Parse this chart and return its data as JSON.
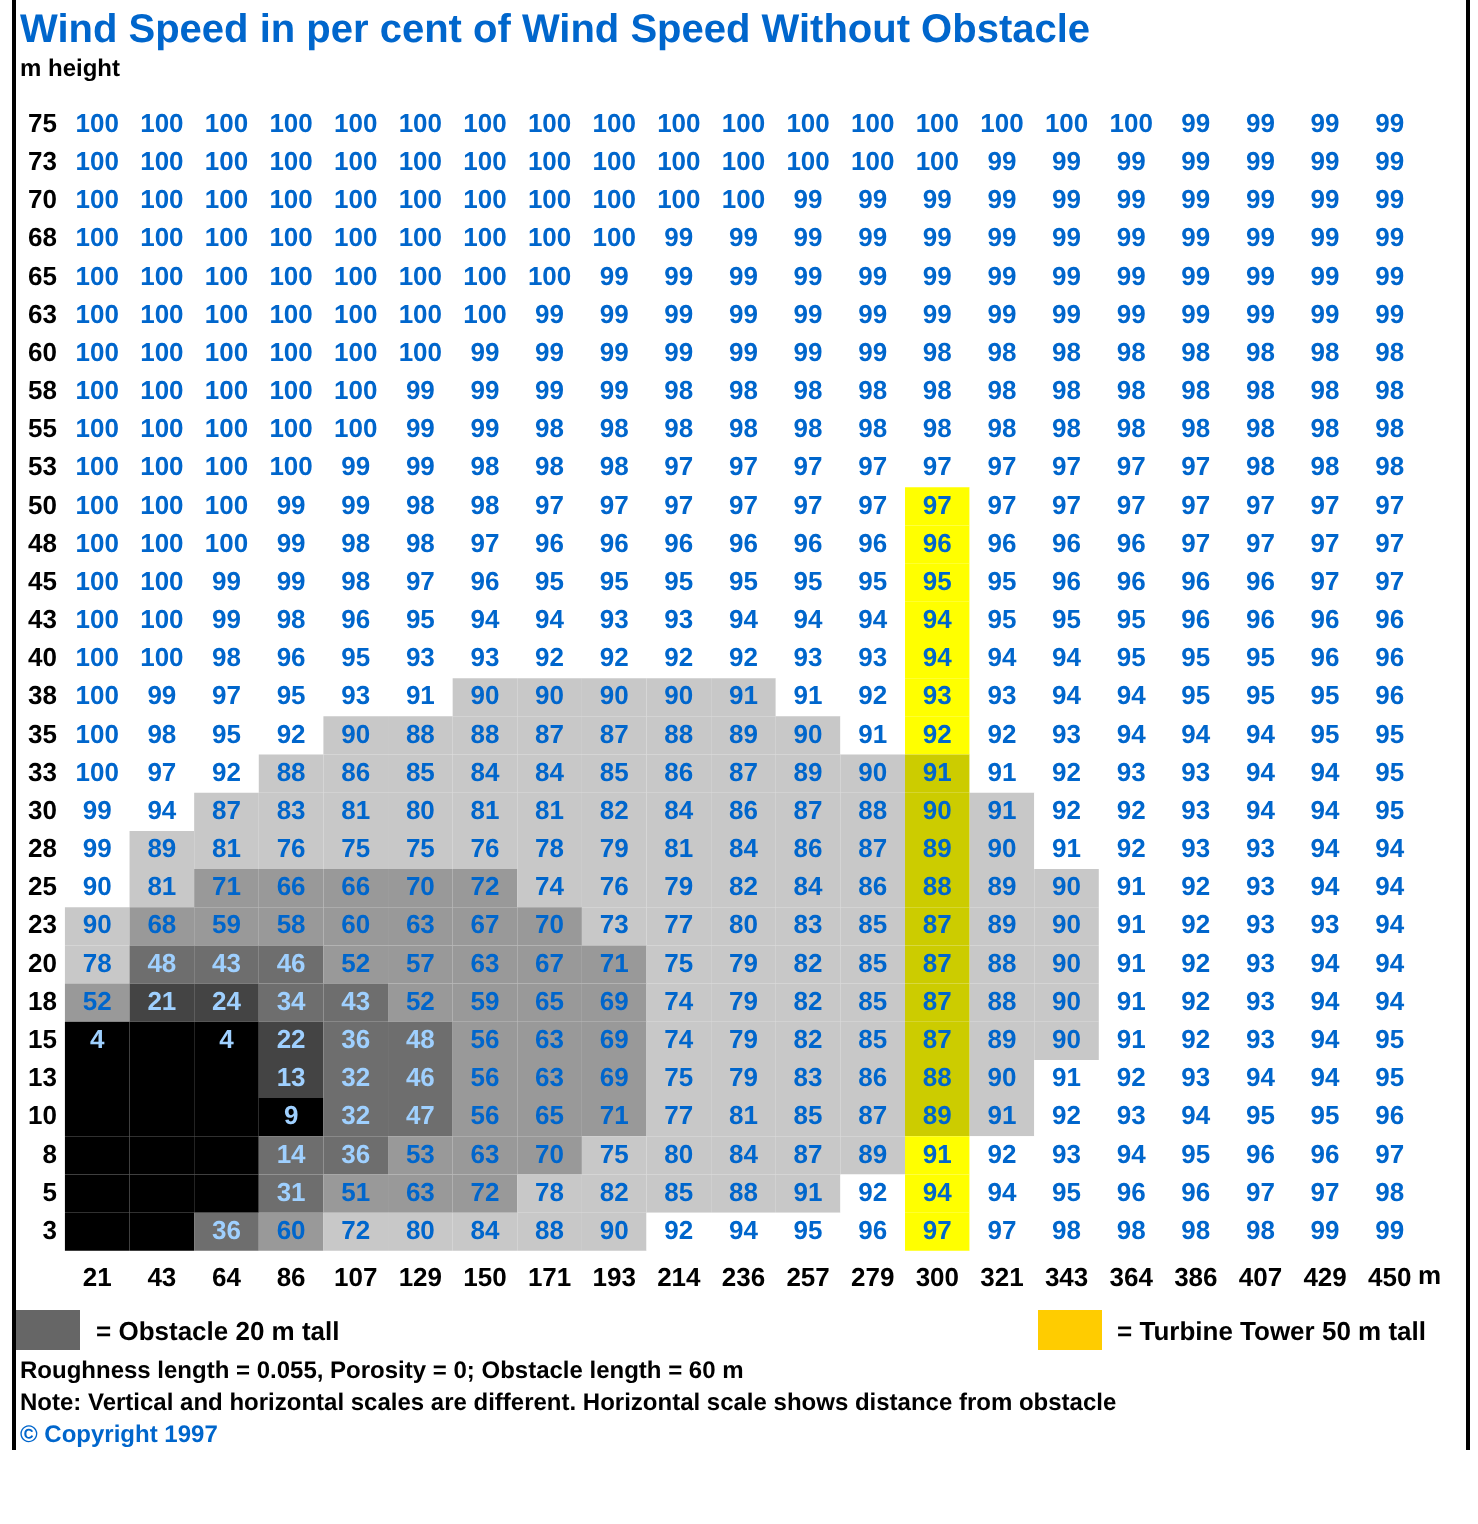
{
  "chart_data": {
    "type": "heatmap",
    "title": "Wind Speed in per cent of Wind Speed Without Obstacle",
    "ylabel": "m height",
    "xlabel": "m",
    "categories": [
      "21",
      "43",
      "64",
      "86",
      "107",
      "129",
      "150",
      "171",
      "193",
      "214",
      "236",
      "257",
      "279",
      "300",
      "321",
      "343",
      "364",
      "386",
      "407",
      "429",
      "450"
    ],
    "y_categories": [
      "75",
      "73",
      "70",
      "68",
      "65",
      "63",
      "60",
      "58",
      "55",
      "53",
      "50",
      "48",
      "45",
      "43",
      "40",
      "38",
      "35",
      "33",
      "30",
      "28",
      "25",
      "23",
      "20",
      "18",
      "15",
      "13",
      "10",
      "8",
      "5",
      "3"
    ],
    "cells": [
      [
        100,
        100,
        100,
        100,
        100,
        100,
        100,
        100,
        100,
        100,
        100,
        100,
        100,
        100,
        100,
        100,
        100,
        99,
        99,
        99,
        99
      ],
      [
        100,
        100,
        100,
        100,
        100,
        100,
        100,
        100,
        100,
        100,
        100,
        100,
        100,
        100,
        99,
        99,
        99,
        99,
        99,
        99,
        99
      ],
      [
        100,
        100,
        100,
        100,
        100,
        100,
        100,
        100,
        100,
        100,
        100,
        99,
        99,
        99,
        99,
        99,
        99,
        99,
        99,
        99,
        99
      ],
      [
        100,
        100,
        100,
        100,
        100,
        100,
        100,
        100,
        100,
        99,
        99,
        99,
        99,
        99,
        99,
        99,
        99,
        99,
        99,
        99,
        99
      ],
      [
        100,
        100,
        100,
        100,
        100,
        100,
        100,
        100,
        99,
        99,
        99,
        99,
        99,
        99,
        99,
        99,
        99,
        99,
        99,
        99,
        99
      ],
      [
        100,
        100,
        100,
        100,
        100,
        100,
        100,
        99,
        99,
        99,
        99,
        99,
        99,
        99,
        99,
        99,
        99,
        99,
        99,
        99,
        99
      ],
      [
        100,
        100,
        100,
        100,
        100,
        100,
        99,
        99,
        99,
        99,
        99,
        99,
        99,
        98,
        98,
        98,
        98,
        98,
        98,
        98,
        98
      ],
      [
        100,
        100,
        100,
        100,
        100,
        99,
        99,
        99,
        99,
        98,
        98,
        98,
        98,
        98,
        98,
        98,
        98,
        98,
        98,
        98,
        98
      ],
      [
        100,
        100,
        100,
        100,
        100,
        99,
        99,
        98,
        98,
        98,
        98,
        98,
        98,
        98,
        98,
        98,
        98,
        98,
        98,
        98,
        98
      ],
      [
        100,
        100,
        100,
        100,
        99,
        99,
        98,
        98,
        98,
        97,
        97,
        97,
        97,
        97,
        97,
        97,
        97,
        97,
        98,
        98,
        98
      ],
      [
        100,
        100,
        100,
        99,
        99,
        98,
        98,
        97,
        97,
        97,
        97,
        97,
        97,
        97,
        97,
        97,
        97,
        97,
        97,
        97,
        97
      ],
      [
        100,
        100,
        100,
        99,
        98,
        98,
        97,
        96,
        96,
        96,
        96,
        96,
        96,
        96,
        96,
        96,
        96,
        97,
        97,
        97,
        97
      ],
      [
        100,
        100,
        99,
        99,
        98,
        97,
        96,
        95,
        95,
        95,
        95,
        95,
        95,
        95,
        95,
        96,
        96,
        96,
        96,
        97,
        97
      ],
      [
        100,
        100,
        99,
        98,
        96,
        95,
        94,
        94,
        93,
        93,
        94,
        94,
        94,
        94,
        95,
        95,
        95,
        96,
        96,
        96,
        96
      ],
      [
        100,
        100,
        98,
        96,
        95,
        93,
        93,
        92,
        92,
        92,
        92,
        93,
        93,
        94,
        94,
        94,
        95,
        95,
        95,
        96,
        96
      ],
      [
        100,
        99,
        97,
        95,
        93,
        91,
        90,
        90,
        90,
        90,
        91,
        91,
        92,
        93,
        93,
        94,
        94,
        95,
        95,
        95,
        96
      ],
      [
        100,
        98,
        95,
        92,
        90,
        88,
        88,
        87,
        87,
        88,
        89,
        90,
        91,
        92,
        92,
        93,
        94,
        94,
        94,
        95,
        95
      ],
      [
        100,
        97,
        92,
        88,
        86,
        85,
        84,
        84,
        85,
        86,
        87,
        89,
        90,
        91,
        91,
        92,
        93,
        93,
        94,
        94,
        95
      ],
      [
        99,
        94,
        87,
        83,
        81,
        80,
        81,
        81,
        82,
        84,
        86,
        87,
        88,
        90,
        91,
        92,
        92,
        93,
        94,
        94,
        95
      ],
      [
        99,
        89,
        81,
        76,
        75,
        75,
        76,
        78,
        79,
        81,
        84,
        86,
        87,
        89,
        90,
        91,
        92,
        93,
        93,
        94,
        94
      ],
      [
        90,
        81,
        71,
        66,
        66,
        70,
        72,
        74,
        76,
        79,
        82,
        84,
        86,
        88,
        89,
        90,
        91,
        92,
        93,
        94,
        94
      ],
      [
        90,
        68,
        59,
        58,
        60,
        63,
        67,
        70,
        73,
        77,
        80,
        83,
        85,
        87,
        89,
        90,
        91,
        92,
        93,
        93,
        94
      ],
      [
        78,
        48,
        43,
        46,
        52,
        57,
        63,
        67,
        71,
        75,
        79,
        82,
        85,
        87,
        88,
        90,
        91,
        92,
        93,
        94,
        94
      ],
      [
        52,
        21,
        24,
        34,
        43,
        52,
        59,
        65,
        69,
        74,
        79,
        82,
        85,
        87,
        88,
        90,
        91,
        92,
        93,
        94,
        94
      ],
      [
        4,
        null,
        4,
        22,
        36,
        48,
        56,
        63,
        69,
        74,
        79,
        82,
        85,
        87,
        89,
        90,
        91,
        92,
        93,
        94,
        95
      ],
      [
        null,
        null,
        null,
        13,
        32,
        46,
        56,
        63,
        69,
        75,
        79,
        83,
        86,
        88,
        90,
        91,
        92,
        93,
        94,
        94,
        95
      ],
      [
        null,
        null,
        null,
        9,
        32,
        47,
        56,
        65,
        71,
        77,
        81,
        85,
        87,
        89,
        91,
        92,
        93,
        94,
        95,
        95,
        96
      ],
      [
        null,
        null,
        null,
        14,
        36,
        53,
        63,
        70,
        75,
        80,
        84,
        87,
        89,
        91,
        92,
        93,
        94,
        95,
        96,
        96,
        97
      ],
      [
        null,
        null,
        null,
        31,
        51,
        63,
        72,
        78,
        82,
        85,
        88,
        91,
        92,
        94,
        94,
        95,
        96,
        96,
        97,
        97,
        98
      ],
      [
        null,
        null,
        36,
        60,
        72,
        80,
        84,
        88,
        90,
        92,
        94,
        95,
        96,
        97,
        97,
        98,
        98,
        98,
        98,
        99,
        99
      ]
    ],
    "colors": [
      [
        "#ffffff",
        "#ffffff",
        "#ffffff",
        "#ffffff",
        "#ffffff",
        "#ffffff",
        "#ffffff",
        "#ffffff",
        "#ffffff",
        "#ffffff",
        "#ffffff",
        "#ffffff",
        "#ffffff",
        "#ffffff",
        "#ffffff",
        "#ffffff",
        "#ffffff",
        "#ffffff",
        "#ffffff",
        "#ffffff",
        "#ffffff"
      ],
      [
        "#ffffff",
        "#ffffff",
        "#ffffff",
        "#ffffff",
        "#ffffff",
        "#ffffff",
        "#ffffff",
        "#ffffff",
        "#ffffff",
        "#ffffff",
        "#ffffff",
        "#ffffff",
        "#ffffff",
        "#ffffff",
        "#ffffff",
        "#ffffff",
        "#ffffff",
        "#ffffff",
        "#ffffff",
        "#ffffff",
        "#ffffff"
      ],
      [
        "#ffffff",
        "#ffffff",
        "#ffffff",
        "#ffffff",
        "#ffffff",
        "#ffffff",
        "#ffffff",
        "#ffffff",
        "#ffffff",
        "#ffffff",
        "#ffffff",
        "#ffffff",
        "#ffffff",
        "#ffffff",
        "#ffffff",
        "#ffffff",
        "#ffffff",
        "#ffffff",
        "#ffffff",
        "#ffffff",
        "#ffffff"
      ],
      [
        "#ffffff",
        "#ffffff",
        "#ffffff",
        "#ffffff",
        "#ffffff",
        "#ffffff",
        "#ffffff",
        "#ffffff",
        "#ffffff",
        "#ffffff",
        "#ffffff",
        "#ffffff",
        "#ffffff",
        "#ffffff",
        "#ffffff",
        "#ffffff",
        "#ffffff",
        "#ffffff",
        "#ffffff",
        "#ffffff",
        "#ffffff"
      ],
      [
        "#ffffff",
        "#ffffff",
        "#ffffff",
        "#ffffff",
        "#ffffff",
        "#ffffff",
        "#ffffff",
        "#ffffff",
        "#ffffff",
        "#ffffff",
        "#ffffff",
        "#ffffff",
        "#ffffff",
        "#ffffff",
        "#ffffff",
        "#ffffff",
        "#ffffff",
        "#ffffff",
        "#ffffff",
        "#ffffff",
        "#ffffff"
      ],
      [
        "#ffffff",
        "#ffffff",
        "#ffffff",
        "#ffffff",
        "#ffffff",
        "#ffffff",
        "#ffffff",
        "#ffffff",
        "#ffffff",
        "#ffffff",
        "#ffffff",
        "#ffffff",
        "#ffffff",
        "#ffffff",
        "#ffffff",
        "#ffffff",
        "#ffffff",
        "#ffffff",
        "#ffffff",
        "#ffffff",
        "#ffffff"
      ],
      [
        "#ffffff",
        "#ffffff",
        "#ffffff",
        "#ffffff",
        "#ffffff",
        "#ffffff",
        "#ffffff",
        "#ffffff",
        "#ffffff",
        "#ffffff",
        "#ffffff",
        "#ffffff",
        "#ffffff",
        "#ffffff",
        "#ffffff",
        "#ffffff",
        "#ffffff",
        "#ffffff",
        "#ffffff",
        "#ffffff",
        "#ffffff"
      ],
      [
        "#ffffff",
        "#ffffff",
        "#ffffff",
        "#ffffff",
        "#ffffff",
        "#ffffff",
        "#ffffff",
        "#ffffff",
        "#ffffff",
        "#ffffff",
        "#ffffff",
        "#ffffff",
        "#ffffff",
        "#ffffff",
        "#ffffff",
        "#ffffff",
        "#ffffff",
        "#ffffff",
        "#ffffff",
        "#ffffff",
        "#ffffff"
      ],
      [
        "#ffffff",
        "#ffffff",
        "#ffffff",
        "#ffffff",
        "#ffffff",
        "#ffffff",
        "#ffffff",
        "#ffffff",
        "#ffffff",
        "#ffffff",
        "#ffffff",
        "#ffffff",
        "#ffffff",
        "#ffffff",
        "#ffffff",
        "#ffffff",
        "#ffffff",
        "#ffffff",
        "#ffffff",
        "#ffffff",
        "#ffffff"
      ],
      [
        "#ffffff",
        "#ffffff",
        "#ffffff",
        "#ffffff",
        "#ffffff",
        "#ffffff",
        "#ffffff",
        "#ffffff",
        "#ffffff",
        "#ffffff",
        "#ffffff",
        "#ffffff",
        "#ffffff",
        "#ffffff",
        "#ffffff",
        "#ffffff",
        "#ffffff",
        "#ffffff",
        "#ffffff",
        "#ffffff",
        "#ffffff"
      ],
      [
        "#ffffff",
        "#ffffff",
        "#ffffff",
        "#ffffff",
        "#ffffff",
        "#ffffff",
        "#ffffff",
        "#ffffff",
        "#ffffff",
        "#ffffff",
        "#ffffff",
        "#ffffff",
        "#ffffff",
        "#ffff00",
        "#ffffff",
        "#ffffff",
        "#ffffff",
        "#ffffff",
        "#ffffff",
        "#ffffff",
        "#ffffff"
      ],
      [
        "#ffffff",
        "#ffffff",
        "#ffffff",
        "#ffffff",
        "#ffffff",
        "#ffffff",
        "#ffffff",
        "#ffffff",
        "#ffffff",
        "#ffffff",
        "#ffffff",
        "#ffffff",
        "#ffffff",
        "#ffff00",
        "#ffffff",
        "#ffffff",
        "#ffffff",
        "#ffffff",
        "#ffffff",
        "#ffffff",
        "#ffffff"
      ],
      [
        "#ffffff",
        "#ffffff",
        "#ffffff",
        "#ffffff",
        "#ffffff",
        "#ffffff",
        "#ffffff",
        "#ffffff",
        "#ffffff",
        "#ffffff",
        "#ffffff",
        "#ffffff",
        "#ffffff",
        "#ffff00",
        "#ffffff",
        "#ffffff",
        "#ffffff",
        "#ffffff",
        "#ffffff",
        "#ffffff",
        "#ffffff"
      ],
      [
        "#ffffff",
        "#ffffff",
        "#ffffff",
        "#ffffff",
        "#ffffff",
        "#ffffff",
        "#ffffff",
        "#ffffff",
        "#ffffff",
        "#ffffff",
        "#ffffff",
        "#ffffff",
        "#ffffff",
        "#ffff00",
        "#ffffff",
        "#ffffff",
        "#ffffff",
        "#ffffff",
        "#ffffff",
        "#ffffff",
        "#ffffff"
      ],
      [
        "#ffffff",
        "#ffffff",
        "#ffffff",
        "#ffffff",
        "#ffffff",
        "#ffffff",
        "#ffffff",
        "#ffffff",
        "#ffffff",
        "#ffffff",
        "#ffffff",
        "#ffffff",
        "#ffffff",
        "#ffff00",
        "#ffffff",
        "#ffffff",
        "#ffffff",
        "#ffffff",
        "#ffffff",
        "#ffffff",
        "#ffffff"
      ],
      [
        "#ffffff",
        "#ffffff",
        "#ffffff",
        "#ffffff",
        "#ffffff",
        "#ffffff",
        "#c8c8c8",
        "#c8c8c8",
        "#c8c8c8",
        "#c8c8c8",
        "#c8c8c8",
        "#ffffff",
        "#ffffff",
        "#ffff00",
        "#ffffff",
        "#ffffff",
        "#ffffff",
        "#ffffff",
        "#ffffff",
        "#ffffff",
        "#ffffff"
      ],
      [
        "#ffffff",
        "#ffffff",
        "#ffffff",
        "#ffffff",
        "#c8c8c8",
        "#c8c8c8",
        "#c8c8c8",
        "#c8c8c8",
        "#c8c8c8",
        "#c8c8c8",
        "#c8c8c8",
        "#c8c8c8",
        "#ffffff",
        "#ffff00",
        "#ffffff",
        "#ffffff",
        "#ffffff",
        "#ffffff",
        "#ffffff",
        "#ffffff",
        "#ffffff"
      ],
      [
        "#ffffff",
        "#ffffff",
        "#ffffff",
        "#c8c8c8",
        "#c8c8c8",
        "#c8c8c8",
        "#c8c8c8",
        "#c8c8c8",
        "#c8c8c8",
        "#c8c8c8",
        "#c8c8c8",
        "#c8c8c8",
        "#c8c8c8",
        "#cccc00",
        "#ffffff",
        "#ffffff",
        "#ffffff",
        "#ffffff",
        "#ffffff",
        "#ffffff",
        "#ffffff"
      ],
      [
        "#ffffff",
        "#ffffff",
        "#c8c8c8",
        "#c8c8c8",
        "#c8c8c8",
        "#c8c8c8",
        "#c8c8c8",
        "#c8c8c8",
        "#c8c8c8",
        "#c8c8c8",
        "#c8c8c8",
        "#c8c8c8",
        "#c8c8c8",
        "#cccc00",
        "#c8c8c8",
        "#ffffff",
        "#ffffff",
        "#ffffff",
        "#ffffff",
        "#ffffff",
        "#ffffff"
      ],
      [
        "#ffffff",
        "#c8c8c8",
        "#c8c8c8",
        "#c8c8c8",
        "#c8c8c8",
        "#c8c8c8",
        "#c8c8c8",
        "#c8c8c8",
        "#c8c8c8",
        "#c8c8c8",
        "#c8c8c8",
        "#c8c8c8",
        "#c8c8c8",
        "#cccc00",
        "#c8c8c8",
        "#ffffff",
        "#ffffff",
        "#ffffff",
        "#ffffff",
        "#ffffff",
        "#ffffff"
      ],
      [
        "#ffffff",
        "#c8c8c8",
        "#999999",
        "#999999",
        "#999999",
        "#999999",
        "#999999",
        "#c8c8c8",
        "#c8c8c8",
        "#c8c8c8",
        "#c8c8c8",
        "#c8c8c8",
        "#c8c8c8",
        "#cccc00",
        "#c8c8c8",
        "#c8c8c8",
        "#ffffff",
        "#ffffff",
        "#ffffff",
        "#ffffff",
        "#ffffff"
      ],
      [
        "#c8c8c8",
        "#999999",
        "#999999",
        "#999999",
        "#999999",
        "#999999",
        "#999999",
        "#999999",
        "#c8c8c8",
        "#c8c8c8",
        "#c8c8c8",
        "#c8c8c8",
        "#c8c8c8",
        "#cccc00",
        "#c8c8c8",
        "#c8c8c8",
        "#ffffff",
        "#ffffff",
        "#ffffff",
        "#ffffff",
        "#ffffff"
      ],
      [
        "#c8c8c8",
        "#6e6e6e",
        "#6e6e6e",
        "#6e6e6e",
        "#999999",
        "#999999",
        "#999999",
        "#999999",
        "#999999",
        "#c8c8c8",
        "#c8c8c8",
        "#c8c8c8",
        "#c8c8c8",
        "#cccc00",
        "#c8c8c8",
        "#c8c8c8",
        "#ffffff",
        "#ffffff",
        "#ffffff",
        "#ffffff",
        "#ffffff"
      ],
      [
        "#999999",
        "#444444",
        "#444444",
        "#6e6e6e",
        "#6e6e6e",
        "#999999",
        "#999999",
        "#999999",
        "#999999",
        "#c8c8c8",
        "#c8c8c8",
        "#c8c8c8",
        "#c8c8c8",
        "#cccc00",
        "#c8c8c8",
        "#c8c8c8",
        "#ffffff",
        "#ffffff",
        "#ffffff",
        "#ffffff",
        "#ffffff"
      ],
      [
        "#000000",
        "#000000",
        "#000000",
        "#444444",
        "#6e6e6e",
        "#6e6e6e",
        "#999999",
        "#999999",
        "#999999",
        "#c8c8c8",
        "#c8c8c8",
        "#c8c8c8",
        "#c8c8c8",
        "#cccc00",
        "#c8c8c8",
        "#c8c8c8",
        "#ffffff",
        "#ffffff",
        "#ffffff",
        "#ffffff",
        "#ffffff"
      ],
      [
        "#000000",
        "#000000",
        "#000000",
        "#444444",
        "#6e6e6e",
        "#6e6e6e",
        "#999999",
        "#999999",
        "#999999",
        "#c8c8c8",
        "#c8c8c8",
        "#c8c8c8",
        "#c8c8c8",
        "#cccc00",
        "#c8c8c8",
        "#ffffff",
        "#ffffff",
        "#ffffff",
        "#ffffff",
        "#ffffff",
        "#ffffff"
      ],
      [
        "#000000",
        "#000000",
        "#000000",
        "#000000",
        "#6e6e6e",
        "#6e6e6e",
        "#999999",
        "#999999",
        "#999999",
        "#c8c8c8",
        "#c8c8c8",
        "#c8c8c8",
        "#c8c8c8",
        "#cccc00",
        "#c8c8c8",
        "#ffffff",
        "#ffffff",
        "#ffffff",
        "#ffffff",
        "#ffffff",
        "#ffffff"
      ],
      [
        "#000000",
        "#000000",
        "#000000",
        "#6e6e6e",
        "#6e6e6e",
        "#999999",
        "#999999",
        "#999999",
        "#c8c8c8",
        "#c8c8c8",
        "#c8c8c8",
        "#c8c8c8",
        "#c8c8c8",
        "#ffff00",
        "#ffffff",
        "#ffffff",
        "#ffffff",
        "#ffffff",
        "#ffffff",
        "#ffffff",
        "#ffffff"
      ],
      [
        "#000000",
        "#000000",
        "#000000",
        "#6e6e6e",
        "#999999",
        "#999999",
        "#999999",
        "#c8c8c8",
        "#c8c8c8",
        "#c8c8c8",
        "#c8c8c8",
        "#c8c8c8",
        "#ffffff",
        "#ffff00",
        "#ffffff",
        "#ffffff",
        "#ffffff",
        "#ffffff",
        "#ffffff",
        "#ffffff",
        "#ffffff"
      ],
      [
        "#000000",
        "#000000",
        "#6e6e6e",
        "#999999",
        "#c8c8c8",
        "#c8c8c8",
        "#c8c8c8",
        "#c8c8c8",
        "#c8c8c8",
        "#ffffff",
        "#ffffff",
        "#ffffff",
        "#ffffff",
        "#ffff00",
        "#ffffff",
        "#ffffff",
        "#ffffff",
        "#ffffff",
        "#ffffff",
        "#ffffff",
        "#ffffff"
      ]
    ],
    "data_labels": true,
    "grid": false,
    "annotations": [
      "= Obstacle 20 m tall",
      "= Turbine Tower 50 m tall",
      "Roughness length = 0.055, Porosity = 0; Obstacle length = 60 m",
      "Note: Vertical and horizontal scales are different. Horizontal scale shows distance from obstacle",
      "© Copyright 1997"
    ]
  }
}
